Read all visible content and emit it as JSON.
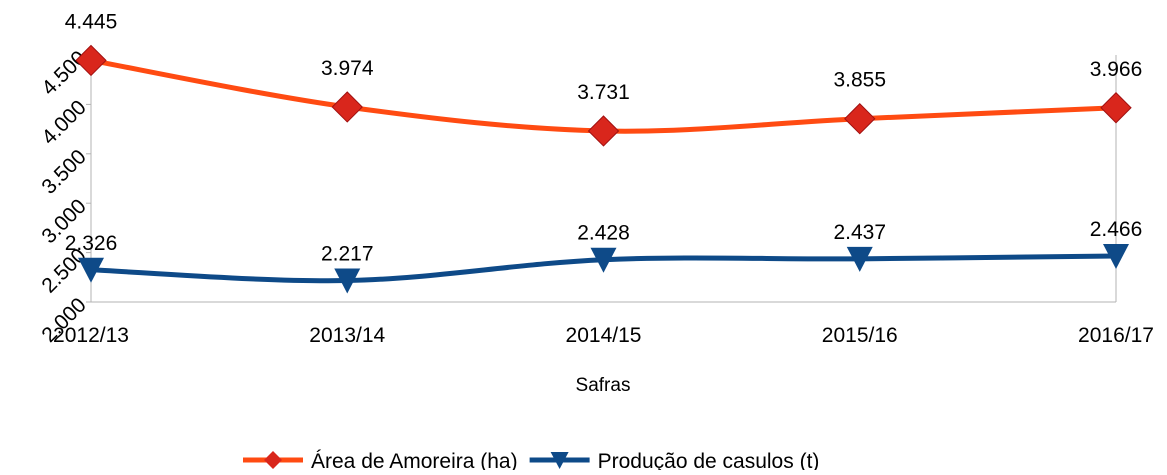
{
  "chart_data": {
    "type": "line",
    "x_label": "Safras",
    "categories": [
      "2012/13",
      "2013/14",
      "2014/15",
      "2015/16",
      "2016/17"
    ],
    "series": [
      {
        "name": "Área de Amoreira (ha)",
        "color": "#ff4b12",
        "marker_color": "#d9261c",
        "marker": "diamond",
        "values": [
          4445,
          3974,
          3731,
          3855,
          3966
        ],
        "value_labels": [
          "4.445",
          "3.974",
          "3.731",
          "3.855",
          "3.966"
        ]
      },
      {
        "name": "Produção de casulos (t)",
        "color": "#0e4a88",
        "marker_color": "#0e4a88",
        "marker": "triangle-down",
        "values": [
          2326,
          2217,
          2428,
          2437,
          2466
        ],
        "value_labels": [
          "2.326",
          "2.217",
          "2.428",
          "2.437",
          "2.466"
        ]
      }
    ],
    "ylim": [
      2000,
      4500
    ],
    "yticks": [
      {
        "value": 2000,
        "label": "2.000"
      },
      {
        "value": 2500,
        "label": "2.500"
      },
      {
        "value": 3000,
        "label": "3.000"
      },
      {
        "value": 3500,
        "label": "3.500"
      },
      {
        "value": 4000,
        "label": "4.000"
      },
      {
        "value": 4500,
        "label": "4.500"
      }
    ],
    "grid": false,
    "legend": "bottom"
  }
}
